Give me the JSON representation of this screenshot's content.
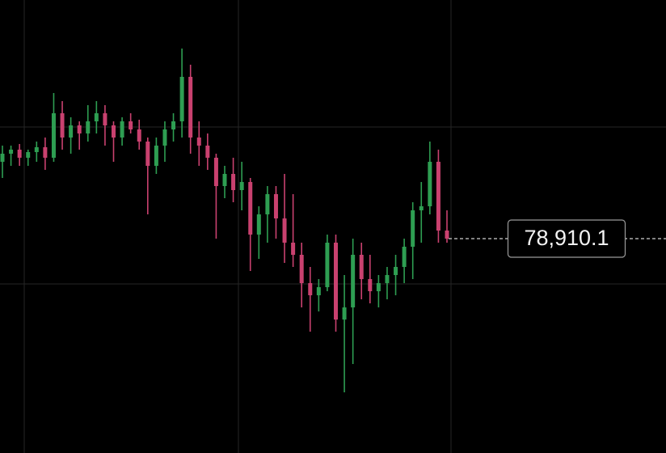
{
  "chart_data": {
    "type": "candlestick",
    "ylim": [
      73610,
      84810
    ],
    "up_color": "#2e9e52",
    "down_color": "#c9416f",
    "open": [
      80810,
      81010,
      81110,
      80910,
      81050,
      81170,
      80910,
      82010,
      81410,
      81710,
      81510,
      81810,
      82010,
      81710,
      81410,
      81810,
      81610,
      81310,
      80710,
      81210,
      81610,
      81810,
      82910,
      81410,
      81210,
      80910,
      80210,
      80510,
      80110,
      80310,
      79010,
      79510,
      80010,
      79410,
      78810,
      78510,
      77810,
      77510,
      77710,
      78810,
      76910,
      77210,
      78510,
      77910,
      77610,
      77810,
      78010,
      78210,
      78710,
      79610,
      79710,
      80810,
      79110
    ],
    "high": [
      81210,
      81210,
      81250,
      81110,
      81310,
      81410,
      82510,
      82310,
      81910,
      81810,
      82210,
      82310,
      82210,
      81810,
      81910,
      82010,
      81850,
      81410,
      81410,
      81810,
      82010,
      83610,
      83210,
      81810,
      81510,
      81010,
      80710,
      80910,
      80810,
      80410,
      79710,
      80210,
      80210,
      80510,
      80010,
      78810,
      78210,
      77910,
      79010,
      79010,
      78010,
      78910,
      78810,
      78510,
      78010,
      78210,
      78510,
      78910,
      79810,
      80310,
      81310,
      81110,
      79610
    ],
    "low": [
      80410,
      80710,
      80710,
      80710,
      80810,
      80610,
      80810,
      81110,
      81010,
      81110,
      81310,
      81510,
      81210,
      80810,
      81210,
      81510,
      81110,
      79510,
      80510,
      80810,
      81310,
      81410,
      81010,
      80710,
      80610,
      78910,
      79910,
      79810,
      79610,
      78110,
      78410,
      78810,
      78910,
      78310,
      78210,
      77210,
      76610,
      77110,
      77610,
      76610,
      75110,
      75810,
      77410,
      77310,
      77210,
      77410,
      77510,
      77810,
      77910,
      78810,
      79510,
      78810,
      78810
    ],
    "close": [
      81010,
      81110,
      80910,
      81050,
      81170,
      80910,
      82010,
      81410,
      81710,
      81510,
      81810,
      82010,
      81710,
      81410,
      81810,
      81610,
      81310,
      80710,
      81210,
      81610,
      81810,
      82910,
      81410,
      81210,
      80910,
      80210,
      80510,
      80110,
      80310,
      79010,
      79510,
      80010,
      79410,
      78810,
      78510,
      77810,
      77510,
      77710,
      78810,
      76910,
      77210,
      78510,
      77910,
      77610,
      77810,
      78010,
      78210,
      78710,
      79610,
      79710,
      80810,
      79110,
      78910.1
    ],
    "last_price": {
      "value": 78910.1,
      "label": "78,910.1"
    }
  }
}
